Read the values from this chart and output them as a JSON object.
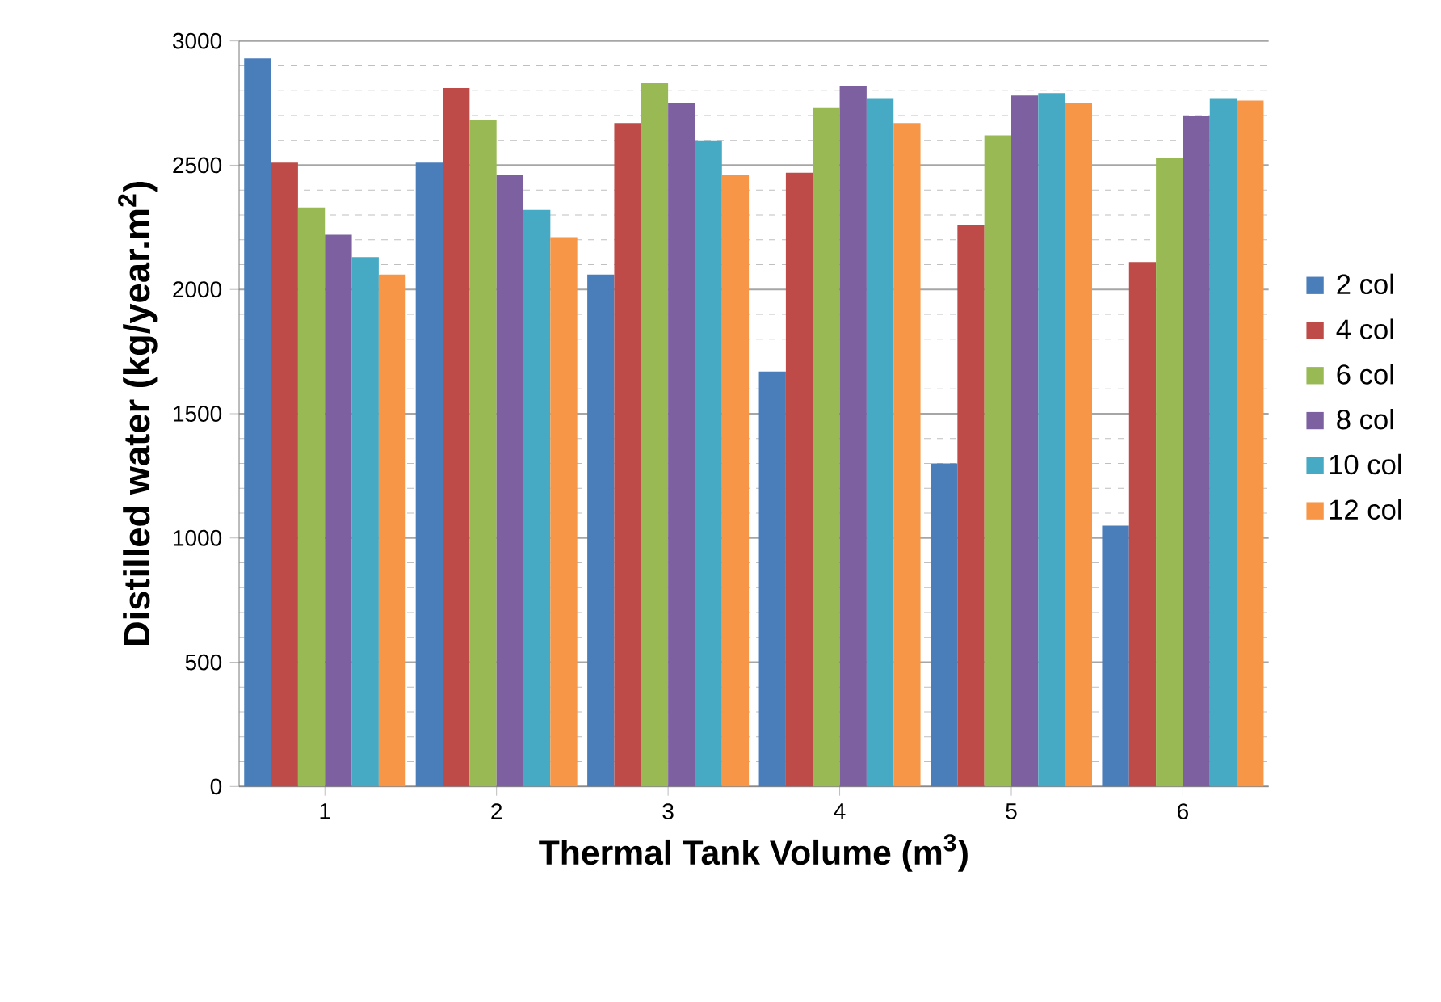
{
  "chart_data": {
    "type": "bar",
    "xlabel": "Thermal Tank Volume   (m$^{3}$)",
    "ylabel": "Distilled water (kg/year.m$^{2}$)",
    "categories": [
      "1",
      "2",
      "3",
      "4",
      "5",
      "6"
    ],
    "series": [
      {
        "name": "2 col",
        "color": "#4a7ebb",
        "values": [
          2930,
          2510,
          2060,
          1670,
          1300,
          1050
        ]
      },
      {
        "name": "4 col",
        "color": "#be4b48",
        "values": [
          2510,
          2810,
          2670,
          2470,
          2260,
          2110
        ]
      },
      {
        "name": "6 col",
        "color": "#98b954",
        "values": [
          2330,
          2680,
          2830,
          2730,
          2620,
          2530
        ]
      },
      {
        "name": "8 col",
        "color": "#7d60a0",
        "values": [
          2220,
          2460,
          2750,
          2820,
          2780,
          2700
        ]
      },
      {
        "name": "10 col",
        "color": "#46aac5",
        "values": [
          2130,
          2320,
          2600,
          2770,
          2790,
          2770
        ]
      },
      {
        "name": "12 col",
        "color": "#f79646",
        "values": [
          2060,
          2210,
          2460,
          2670,
          2750,
          2760
        ]
      }
    ],
    "ylim": [
      0,
      3000
    ],
    "yticks": [
      0,
      500,
      1000,
      1500,
      2000,
      2500,
      3000
    ],
    "grid": "y",
    "legend": "right"
  }
}
